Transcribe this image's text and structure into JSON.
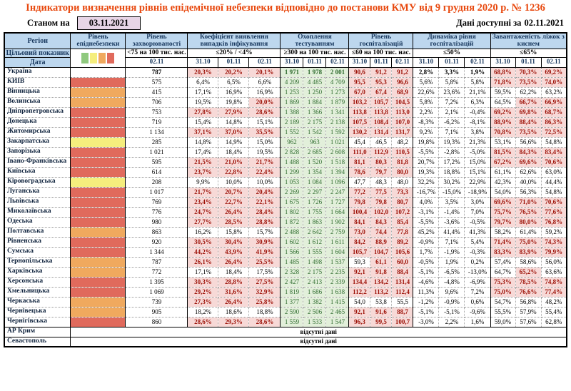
{
  "title": "Індикатори визначення рівнів епідемічної небезпеки відповідно до постанови КМУ від 9 грудня 2020 р. № 1236",
  "status": {
    "as_of_label": "Станом на",
    "as_of_date": "03.11.2021",
    "available_label": "Дані доступні за",
    "available_date": "02.11.2021"
  },
  "colors": {
    "title_text": "#e8490f",
    "header_bg": "#bdd7ee",
    "flag_bg": "#f7d9d7",
    "flag_text": "#9c1006",
    "ok_bg": "#e2efda",
    "ok_text": "#2f6c2f",
    "level_red": "#e06a5c",
    "level_orange": "#f0a95e",
    "level_yellow": "#f5ee7d",
    "level_green": "#8fc97e",
    "date_box_bg": "#e7d5e6"
  },
  "legend_colors": [
    "#8fc97e",
    "#f5ee7d",
    "#f0a95e",
    "#e06a5c"
  ],
  "header": {
    "region_label": "Регіон",
    "target_label": "Цільовий показник",
    "date_label": "Дата",
    "groups": [
      {
        "name": "Рівень епіднебезпеки",
        "target": "",
        "dates": []
      },
      {
        "name": "Рівень захворюваності",
        "target": "<75 на 100 тис. нас.",
        "dates": [
          "02.11"
        ]
      },
      {
        "name": "Коефіцієнт виявлення випадків інфікування",
        "target": "≤20% / <4%",
        "dates": [
          "31.10",
          "01.11",
          "02.11"
        ]
      },
      {
        "name": "Охоплення тестуванням",
        "target": "≥300 на 100 тис. нас.",
        "dates": [
          "31.10",
          "01.11",
          "02.11"
        ]
      },
      {
        "name": "Рівень госпіталізацій",
        "target": "≤60 на 100 тис. нас.",
        "dates": [
          "31.10",
          "01.11",
          "02.11"
        ]
      },
      {
        "name": "Динаміка рівня госпіталізацій",
        "target": "≤50%",
        "dates": [
          "31.10",
          "01.11",
          "02.11"
        ]
      },
      {
        "name": "Завантаженість ліжок з киснем",
        "target": "≤65%",
        "dates": [
          "31.10",
          "01.11",
          "02.11"
        ]
      }
    ]
  },
  "no_data_text": "відсутні дані",
  "rows": [
    {
      "region": "Україна",
      "level": "none",
      "bold": true,
      "incidence": "787",
      "detect": [
        "20,3%",
        "20,2%",
        "20,1%"
      ],
      "detect_flags": [
        1,
        1,
        1
      ],
      "test": [
        "1 971",
        "1 978",
        "2 001"
      ],
      "hosp": [
        "90,6",
        "91,2",
        "91,2"
      ],
      "hosp_flags": [
        1,
        1,
        1
      ],
      "dyn": [
        "2,8%",
        "3,3%",
        "1,9%"
      ],
      "oxy": [
        "68,8%",
        "70,3%",
        "69,2%"
      ],
      "oxy_flags": [
        1,
        1,
        1
      ]
    },
    {
      "region": "КИЇВ",
      "level": "red",
      "incidence": "575",
      "detect": [
        "6,4%",
        "6,5%",
        "6,6%"
      ],
      "detect_flags": [
        0,
        0,
        0
      ],
      "test": [
        "4 209",
        "4 485",
        "4 709"
      ],
      "hosp": [
        "95,5",
        "95,3",
        "96,6"
      ],
      "hosp_flags": [
        1,
        1,
        1
      ],
      "dyn": [
        "5,6%",
        "5,8%",
        "5,8%"
      ],
      "oxy": [
        "71,8%",
        "73,5%",
        "74,0%"
      ],
      "oxy_flags": [
        1,
        1,
        1
      ]
    },
    {
      "region": "Вінницька",
      "level": "orange",
      "incidence": "415",
      "detect": [
        "17,1%",
        "16,9%",
        "16,9%"
      ],
      "detect_flags": [
        0,
        0,
        0
      ],
      "test": [
        "1 253",
        "1 250",
        "1 273"
      ],
      "hosp": [
        "67,0",
        "67,4",
        "68,9"
      ],
      "hosp_flags": [
        1,
        1,
        1
      ],
      "dyn": [
        "22,6%",
        "23,6%",
        "21,1%"
      ],
      "oxy": [
        "59,5%",
        "62,2%",
        "63,2%"
      ],
      "oxy_flags": [
        0,
        0,
        0
      ]
    },
    {
      "region": "Волинська",
      "level": "orange",
      "incidence": "706",
      "detect": [
        "19,5%",
        "19,8%",
        "20,0%"
      ],
      "detect_flags": [
        0,
        0,
        1
      ],
      "test": [
        "1 869",
        "1 884",
        "1 879"
      ],
      "hosp": [
        "103,2",
        "105,7",
        "104,5"
      ],
      "hosp_flags": [
        1,
        1,
        1
      ],
      "dyn": [
        "5,8%",
        "7,2%",
        "6,3%"
      ],
      "oxy": [
        "64,5%",
        "66,7%",
        "66,9%"
      ],
      "oxy_flags": [
        0,
        1,
        1
      ]
    },
    {
      "region": "Дніпропетровська",
      "level": "red",
      "incidence": "753",
      "detect": [
        "27,8%",
        "27,9%",
        "28,6%"
      ],
      "detect_flags": [
        1,
        1,
        1
      ],
      "test": [
        "1 388",
        "1 366",
        "1 341"
      ],
      "hosp": [
        "113,8",
        "113,8",
        "113,0"
      ],
      "hosp_flags": [
        1,
        1,
        1
      ],
      "dyn": [
        "2,2%",
        "2,1%",
        "-0,4%"
      ],
      "oxy": [
        "69,2%",
        "69,8%",
        "68,7%"
      ],
      "oxy_flags": [
        1,
        1,
        1
      ]
    },
    {
      "region": "Донецька",
      "level": "red",
      "incidence": "719",
      "detect": [
        "15,4%",
        "14,8%",
        "15,1%"
      ],
      "detect_flags": [
        0,
        0,
        0
      ],
      "test": [
        "2 189",
        "2 175",
        "2 138"
      ],
      "hosp": [
        "107,5",
        "108,4",
        "107,0"
      ],
      "hosp_flags": [
        1,
        1,
        1
      ],
      "dyn": [
        "-8,3%",
        "-6,2%",
        "-8,1%"
      ],
      "oxy": [
        "88,9%",
        "88,4%",
        "86,3%"
      ],
      "oxy_flags": [
        1,
        1,
        1
      ]
    },
    {
      "region": "Житомирська",
      "level": "red",
      "incidence": "1 134",
      "detect": [
        "37,1%",
        "37,0%",
        "35,5%"
      ],
      "detect_flags": [
        1,
        1,
        1
      ],
      "test": [
        "1 552",
        "1 542",
        "1 592"
      ],
      "hosp": [
        "130,2",
        "131,4",
        "131,7"
      ],
      "hosp_flags": [
        1,
        1,
        1
      ],
      "dyn": [
        "9,2%",
        "7,1%",
        "3,8%"
      ],
      "oxy": [
        "70,8%",
        "73,5%",
        "72,5%"
      ],
      "oxy_flags": [
        1,
        1,
        1
      ]
    },
    {
      "region": "Закарпатська",
      "level": "yellow",
      "incidence": "285",
      "detect": [
        "14,8%",
        "14,9%",
        "15,0%"
      ],
      "detect_flags": [
        0,
        0,
        0
      ],
      "test": [
        "962",
        "963",
        "1 021"
      ],
      "hosp": [
        "45,4",
        "46,5",
        "48,2"
      ],
      "hosp_flags": [
        0,
        0,
        0
      ],
      "dyn": [
        "19,8%",
        "19,3%",
        "21,3%"
      ],
      "oxy": [
        "53,1%",
        "56,6%",
        "54,8%"
      ],
      "oxy_flags": [
        0,
        0,
        0
      ]
    },
    {
      "region": "Запорізька",
      "level": "red",
      "incidence": "1 021",
      "detect": [
        "17,4%",
        "18,4%",
        "19,5%"
      ],
      "detect_flags": [
        0,
        0,
        0
      ],
      "test": [
        "2 828",
        "2 685",
        "2 608"
      ],
      "hosp": [
        "111,0",
        "112,9",
        "110,5"
      ],
      "hosp_flags": [
        1,
        1,
        1
      ],
      "dyn": [
        "-5,5%",
        "-2,8%",
        "-5,0%"
      ],
      "oxy": [
        "81,5%",
        "84,3%",
        "83,4%"
      ],
      "oxy_flags": [
        1,
        1,
        1
      ]
    },
    {
      "region": "Івано-Франківська",
      "level": "red",
      "incidence": "595",
      "detect": [
        "21,5%",
        "21,0%",
        "21,7%"
      ],
      "detect_flags": [
        1,
        1,
        1
      ],
      "test": [
        "1 488",
        "1 520",
        "1 518"
      ],
      "hosp": [
        "81,1",
        "80,3",
        "81,8"
      ],
      "hosp_flags": [
        1,
        1,
        1
      ],
      "dyn": [
        "20,7%",
        "17,2%",
        "15,0%"
      ],
      "oxy": [
        "67,2%",
        "69,6%",
        "70,6%"
      ],
      "oxy_flags": [
        1,
        1,
        1
      ]
    },
    {
      "region": "Київська",
      "level": "red",
      "incidence": "614",
      "detect": [
        "23,7%",
        "22,8%",
        "22,4%"
      ],
      "detect_flags": [
        1,
        1,
        1
      ],
      "test": [
        "1 299",
        "1 354",
        "1 394"
      ],
      "hosp": [
        "78,6",
        "79,7",
        "80,0"
      ],
      "hosp_flags": [
        1,
        1,
        1
      ],
      "dyn": [
        "19,3%",
        "18,8%",
        "15,1%"
      ],
      "oxy": [
        "61,1%",
        "62,6%",
        "63,0%"
      ],
      "oxy_flags": [
        0,
        0,
        0
      ]
    },
    {
      "region": "Кіровоградська",
      "level": "yellow",
      "incidence": "208",
      "detect": [
        "9,9%",
        "10,0%",
        "10,0%"
      ],
      "detect_flags": [
        0,
        0,
        0
      ],
      "test": [
        "1 053",
        "1 084",
        "1 096"
      ],
      "hosp": [
        "47,7",
        "48,3",
        "48,0"
      ],
      "hosp_flags": [
        0,
        0,
        0
      ],
      "dyn": [
        "32,2%",
        "30,2%",
        "22,9%"
      ],
      "oxy": [
        "42,3%",
        "40,0%",
        "44,4%"
      ],
      "oxy_flags": [
        0,
        0,
        0
      ]
    },
    {
      "region": "Луганська",
      "level": "red",
      "incidence": "1 017",
      "detect": [
        "21,7%",
        "20,7%",
        "20,4%"
      ],
      "detect_flags": [
        1,
        1,
        1
      ],
      "test": [
        "2 269",
        "2 297",
        "2 247"
      ],
      "hosp": [
        "77,2",
        "77,5",
        "73,3"
      ],
      "hosp_flags": [
        1,
        1,
        1
      ],
      "dyn": [
        "-16,7%",
        "-15,0%",
        "-18,9%"
      ],
      "oxy": [
        "54,0%",
        "56,3%",
        "54,8%"
      ],
      "oxy_flags": [
        0,
        0,
        0
      ]
    },
    {
      "region": "Львівська",
      "level": "red",
      "incidence": "769",
      "detect": [
        "23,4%",
        "22,7%",
        "22,1%"
      ],
      "detect_flags": [
        1,
        1,
        1
      ],
      "test": [
        "1 675",
        "1 726",
        "1 727"
      ],
      "hosp": [
        "79,8",
        "79,8",
        "80,7"
      ],
      "hosp_flags": [
        1,
        1,
        1
      ],
      "dyn": [
        "4,0%",
        "3,5%",
        "3,0%"
      ],
      "oxy": [
        "69,6%",
        "71,0%",
        "70,6%"
      ],
      "oxy_flags": [
        1,
        1,
        1
      ]
    },
    {
      "region": "Миколаївська",
      "level": "red",
      "incidence": "776",
      "detect": [
        "24,7%",
        "26,4%",
        "28,4%"
      ],
      "detect_flags": [
        1,
        1,
        1
      ],
      "test": [
        "1 802",
        "1 755",
        "1 664"
      ],
      "hosp": [
        "100,4",
        "102,0",
        "107,2"
      ],
      "hosp_flags": [
        1,
        1,
        1
      ],
      "dyn": [
        "-3,1%",
        "-1,4%",
        "7,0%"
      ],
      "oxy": [
        "75,7%",
        "76,5%",
        "77,6%"
      ],
      "oxy_flags": [
        1,
        1,
        1
      ]
    },
    {
      "region": "Одеська",
      "level": "red",
      "incidence": "980",
      "detect": [
        "27,7%",
        "28,5%",
        "28,8%"
      ],
      "detect_flags": [
        1,
        1,
        1
      ],
      "test": [
        "1 872",
        "1 863",
        "1 902"
      ],
      "hosp": [
        "84,1",
        "84,3",
        "85,4"
      ],
      "hosp_flags": [
        1,
        1,
        1
      ],
      "dyn": [
        "-5,5%",
        "-3,6%",
        "-0,5%"
      ],
      "oxy": [
        "79,7%",
        "80,0%",
        "76,8%"
      ],
      "oxy_flags": [
        1,
        1,
        1
      ]
    },
    {
      "region": "Полтавська",
      "level": "orange",
      "incidence": "863",
      "detect": [
        "16,2%",
        "15,8%",
        "15,7%"
      ],
      "detect_flags": [
        0,
        0,
        0
      ],
      "test": [
        "2 488",
        "2 642",
        "2 759"
      ],
      "hosp": [
        "73,0",
        "74,4",
        "77,8"
      ],
      "hosp_flags": [
        1,
        1,
        1
      ],
      "dyn": [
        "45,2%",
        "41,4%",
        "41,3%"
      ],
      "oxy": [
        "58,2%",
        "61,4%",
        "59,2%"
      ],
      "oxy_flags": [
        0,
        0,
        0
      ]
    },
    {
      "region": "Рівненська",
      "level": "red",
      "incidence": "920",
      "detect": [
        "30,5%",
        "30,4%",
        "30,9%"
      ],
      "detect_flags": [
        1,
        1,
        1
      ],
      "test": [
        "1 602",
        "1 612",
        "1 611"
      ],
      "hosp": [
        "84,2",
        "88,9",
        "89,2"
      ],
      "hosp_flags": [
        1,
        1,
        1
      ],
      "dyn": [
        "-0,9%",
        "7,1%",
        "5,4%"
      ],
      "oxy": [
        "71,4%",
        "75,0%",
        "74,3%"
      ],
      "oxy_flags": [
        1,
        1,
        1
      ]
    },
    {
      "region": "Сумська",
      "level": "red",
      "incidence": "1 344",
      "detect": [
        "44,2%",
        "43,9%",
        "41,9%"
      ],
      "detect_flags": [
        1,
        1,
        1
      ],
      "test": [
        "1 566",
        "1 555",
        "1 604"
      ],
      "hosp": [
        "105,7",
        "104,7",
        "105,6"
      ],
      "hosp_flags": [
        1,
        1,
        1
      ],
      "dyn": [
        "1,7%",
        "-1,9%",
        "-0,3%"
      ],
      "oxy": [
        "83,3%",
        "83,9%",
        "79,9%"
      ],
      "oxy_flags": [
        1,
        1,
        1
      ]
    },
    {
      "region": "Тернопільська",
      "level": "orange",
      "incidence": "787",
      "detect": [
        "26,1%",
        "26,4%",
        "25,5%"
      ],
      "detect_flags": [
        1,
        1,
        1
      ],
      "test": [
        "1 485",
        "1 498",
        "1 537"
      ],
      "hosp": [
        "59,3",
        "61,1",
        "60,0"
      ],
      "hosp_flags": [
        0,
        1,
        1
      ],
      "dyn": [
        "-0,5%",
        "1,9%",
        "0,2%"
      ],
      "oxy": [
        "57,4%",
        "58,6%",
        "56,0%"
      ],
      "oxy_flags": [
        0,
        0,
        0
      ]
    },
    {
      "region": "Харківська",
      "level": "orange",
      "incidence": "772",
      "detect": [
        "17,1%",
        "18,4%",
        "17,5%"
      ],
      "detect_flags": [
        0,
        0,
        0
      ],
      "test": [
        "2 328",
        "2 175",
        "2 235"
      ],
      "hosp": [
        "92,1",
        "91,8",
        "88,4"
      ],
      "hosp_flags": [
        1,
        1,
        1
      ],
      "dyn": [
        "-5,1%",
        "-6,5%",
        "-13,0%"
      ],
      "oxy": [
        "64,7%",
        "65,2%",
        "63,6%"
      ],
      "oxy_flags": [
        0,
        1,
        0
      ]
    },
    {
      "region": "Херсонська",
      "level": "red",
      "incidence": "1 395",
      "detect": [
        "30,3%",
        "28,8%",
        "27,5%"
      ],
      "detect_flags": [
        1,
        1,
        1
      ],
      "test": [
        "2 427",
        "2 413",
        "2 339"
      ],
      "hosp": [
        "134,4",
        "134,2",
        "131,4"
      ],
      "hosp_flags": [
        1,
        1,
        1
      ],
      "dyn": [
        "-4,6%",
        "-4,8%",
        "-6,9%"
      ],
      "oxy": [
        "75,3%",
        "78,5%",
        "74,8%"
      ],
      "oxy_flags": [
        1,
        1,
        1
      ]
    },
    {
      "region": "Хмельницька",
      "level": "red",
      "incidence": "1 069",
      "detect": [
        "29,2%",
        "31,6%",
        "32,9%"
      ],
      "detect_flags": [
        1,
        1,
        1
      ],
      "test": [
        "1 819",
        "1 686",
        "1 638"
      ],
      "hosp": [
        "112,2",
        "113,2",
        "112,4"
      ],
      "hosp_flags": [
        1,
        1,
        1
      ],
      "dyn": [
        "11,3%",
        "9,6%",
        "7,2%"
      ],
      "oxy": [
        "75,0%",
        "76,6%",
        "77,4%"
      ],
      "oxy_flags": [
        1,
        1,
        1
      ]
    },
    {
      "region": "Черкаська",
      "level": "orange",
      "incidence": "739",
      "detect": [
        "27,3%",
        "26,4%",
        "25,8%"
      ],
      "detect_flags": [
        1,
        1,
        1
      ],
      "test": [
        "1 377",
        "1 382",
        "1 415"
      ],
      "hosp": [
        "54,0",
        "53,8",
        "55,5"
      ],
      "hosp_flags": [
        0,
        0,
        0
      ],
      "dyn": [
        "-1,2%",
        "-0,9%",
        "0,6%"
      ],
      "oxy": [
        "54,7%",
        "56,8%",
        "48,2%"
      ],
      "oxy_flags": [
        0,
        0,
        0
      ]
    },
    {
      "region": "Чернівецька",
      "level": "orange",
      "incidence": "905",
      "detect": [
        "18,2%",
        "18,6%",
        "18,8%"
      ],
      "detect_flags": [
        0,
        0,
        0
      ],
      "test": [
        "2 590",
        "2 506",
        "2 465"
      ],
      "hosp": [
        "92,1",
        "91,6",
        "88,7"
      ],
      "hosp_flags": [
        1,
        1,
        1
      ],
      "dyn": [
        "-5,1%",
        "-5,1%",
        "-9,6%"
      ],
      "oxy": [
        "55,5%",
        "57,9%",
        "55,4%"
      ],
      "oxy_flags": [
        0,
        0,
        0
      ]
    },
    {
      "region": "Чернігівська",
      "level": "red",
      "incidence": "860",
      "detect": [
        "28,6%",
        "29,3%",
        "28,6%"
      ],
      "detect_flags": [
        1,
        1,
        1
      ],
      "test": [
        "1 559",
        "1 533",
        "1 547"
      ],
      "hosp": [
        "96,3",
        "99,5",
        "100,7"
      ],
      "hosp_flags": [
        1,
        1,
        1
      ],
      "dyn": [
        "-3,0%",
        "2,2%",
        "1,6%"
      ],
      "oxy": [
        "59,0%",
        "57,6%",
        "62,8%"
      ],
      "oxy_flags": [
        0,
        0,
        0
      ]
    },
    {
      "region": "АР Крим",
      "no_data": true
    },
    {
      "region": "Севастополь",
      "no_data": true
    }
  ]
}
